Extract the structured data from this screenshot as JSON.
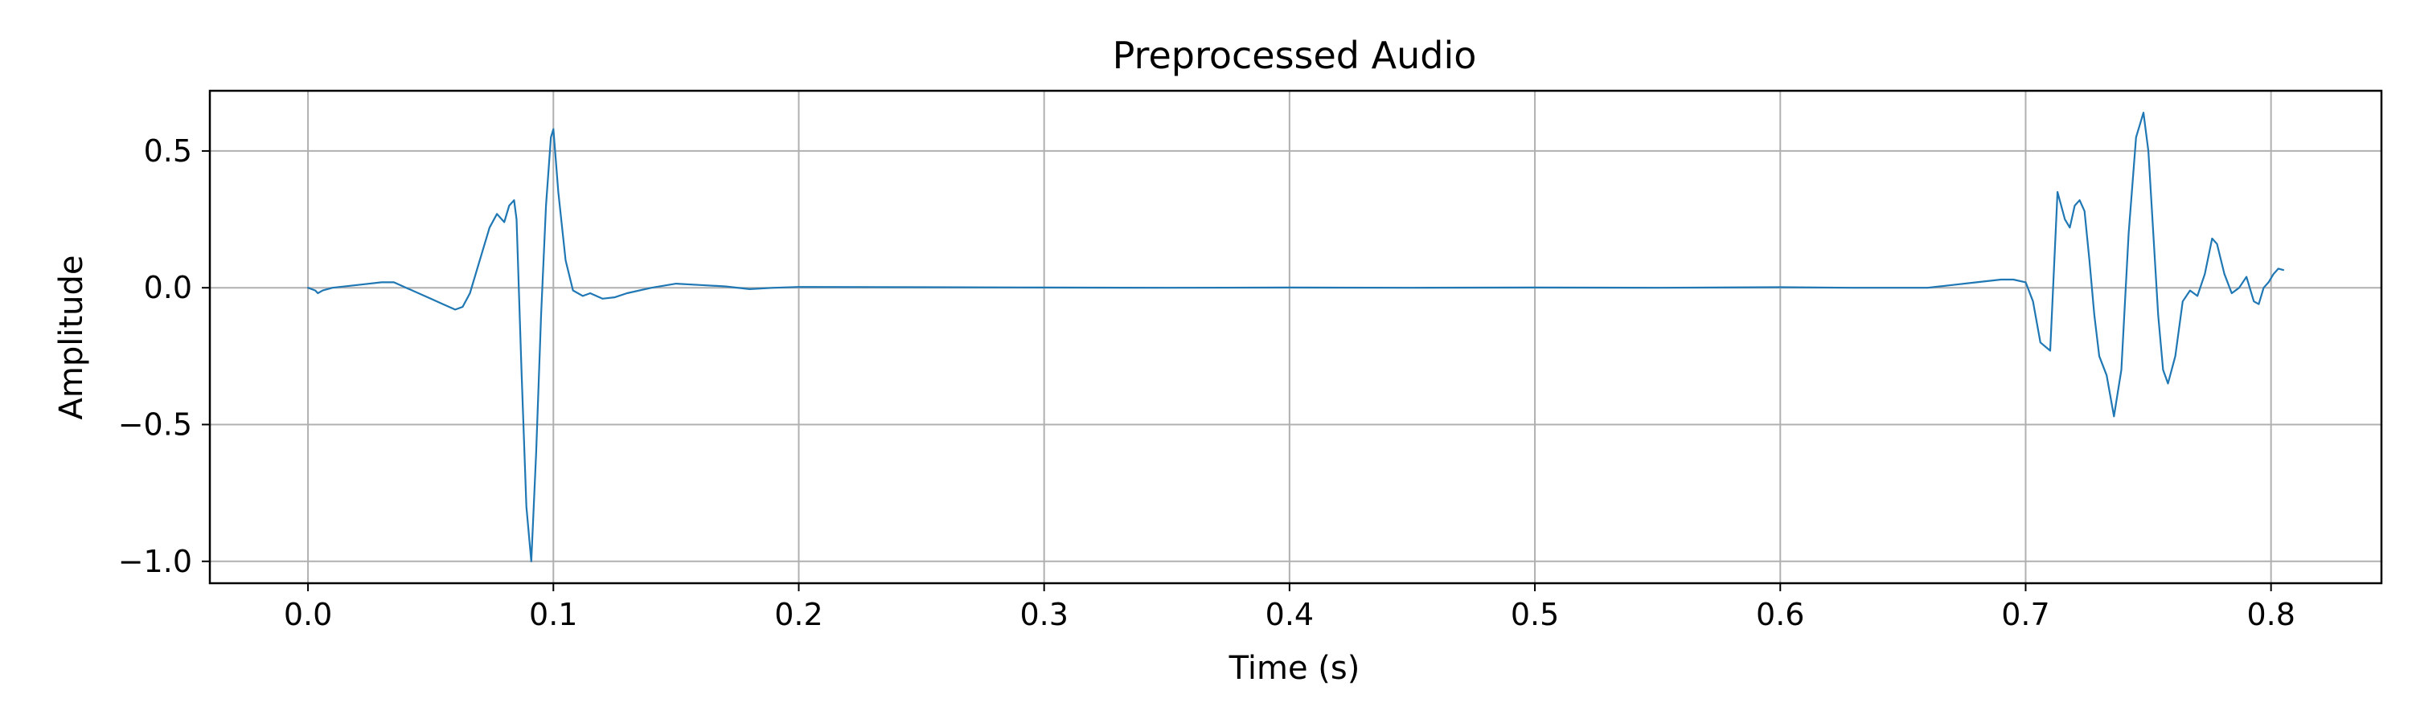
{
  "chart_data": {
    "type": "line",
    "title": "Preprocessed Audio",
    "xlabel": "Time (s)",
    "ylabel": "Amplitude",
    "xlim": [
      -0.04,
      0.845
    ],
    "ylim": [
      -1.08,
      0.72
    ],
    "xticks": [
      0.0,
      0.1,
      0.2,
      0.3,
      0.4,
      0.5,
      0.6,
      0.7,
      0.8
    ],
    "xtick_labels": [
      "0.0",
      "0.1",
      "0.2",
      "0.3",
      "0.4",
      "0.5",
      "0.6",
      "0.7",
      "0.8"
    ],
    "yticks": [
      0.5,
      0.0,
      -0.5,
      -1.0
    ],
    "ytick_labels": [
      "0.5",
      "0.0",
      "−0.5",
      "−1.0"
    ],
    "grid": true,
    "line_color": "#1f77b4",
    "series": [
      {
        "x": [
          0.0,
          0.003,
          0.004,
          0.006,
          0.01,
          0.02,
          0.03,
          0.035,
          0.04,
          0.05,
          0.055,
          0.06,
          0.063,
          0.066,
          0.07,
          0.074,
          0.077,
          0.08,
          0.082,
          0.084,
          0.085,
          0.087,
          0.089,
          0.091,
          0.093,
          0.095,
          0.097,
          0.099,
          0.1,
          0.102,
          0.105,
          0.108,
          0.11,
          0.112,
          0.115,
          0.12,
          0.125,
          0.13,
          0.14,
          0.15,
          0.16,
          0.17,
          0.18,
          0.19,
          0.2,
          0.25,
          0.3,
          0.35,
          0.4,
          0.45,
          0.5,
          0.55,
          0.6,
          0.63,
          0.66,
          0.67,
          0.68,
          0.69,
          0.695,
          0.7,
          0.703,
          0.706,
          0.71,
          0.713,
          0.716,
          0.718,
          0.72,
          0.722,
          0.724,
          0.726,
          0.728,
          0.73,
          0.733,
          0.736,
          0.739,
          0.742,
          0.745,
          0.748,
          0.75,
          0.752,
          0.754,
          0.756,
          0.758,
          0.761,
          0.764,
          0.767,
          0.77,
          0.773,
          0.776,
          0.778,
          0.781,
          0.784,
          0.787,
          0.79,
          0.793,
          0.795,
          0.797,
          0.799,
          0.801,
          0.803,
          0.805
        ],
        "y": [
          0.0,
          -0.01,
          -0.02,
          -0.01,
          0.0,
          0.01,
          0.02,
          0.02,
          0.0,
          -0.04,
          -0.06,
          -0.08,
          -0.07,
          -0.02,
          0.1,
          0.22,
          0.27,
          0.24,
          0.3,
          0.32,
          0.25,
          -0.3,
          -0.8,
          -1.0,
          -0.6,
          -0.1,
          0.3,
          0.55,
          0.58,
          0.35,
          0.1,
          -0.01,
          -0.02,
          -0.03,
          -0.02,
          -0.04,
          -0.035,
          -0.02,
          0.0,
          0.015,
          0.01,
          0.005,
          -0.005,
          0.0,
          0.003,
          0.002,
          0.001,
          0.0,
          0.001,
          0.0,
          0.001,
          0.0,
          0.002,
          0.0,
          0.0,
          0.01,
          0.02,
          0.03,
          0.03,
          0.02,
          -0.05,
          -0.2,
          -0.23,
          0.35,
          0.25,
          0.22,
          0.3,
          0.32,
          0.28,
          0.1,
          -0.1,
          -0.25,
          -0.32,
          -0.47,
          -0.3,
          0.2,
          0.55,
          0.64,
          0.5,
          0.2,
          -0.1,
          -0.3,
          -0.35,
          -0.25,
          -0.05,
          -0.01,
          -0.03,
          0.05,
          0.18,
          0.16,
          0.05,
          -0.02,
          0.0,
          0.04,
          -0.05,
          -0.06,
          0.0,
          0.02,
          0.05,
          0.07,
          0.065
        ]
      }
    ]
  }
}
